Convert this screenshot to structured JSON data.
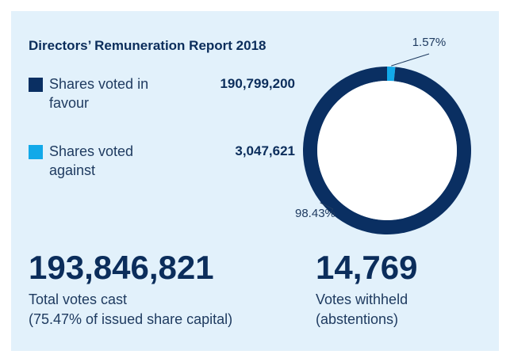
{
  "chart_data": {
    "type": "pie",
    "title": "Directors’ Remuneration Report 2018",
    "categories": [
      "Shares voted in favour",
      "Shares voted against"
    ],
    "values": [
      98.43,
      1.57
    ],
    "value_labels": [
      "98.43%",
      "1.57%"
    ],
    "colors": [
      "#0a2f62",
      "#12a9e9"
    ],
    "shares": [
      "190,799,200",
      "3,047,621"
    ],
    "totals": [
      {
        "value": "193,846,821",
        "lines": [
          "Total votes cast",
          "(75.47% of issued share capital)"
        ]
      },
      {
        "value": "14,769",
        "lines": [
          "Votes withheld",
          "(abstentions)"
        ]
      }
    ]
  }
}
